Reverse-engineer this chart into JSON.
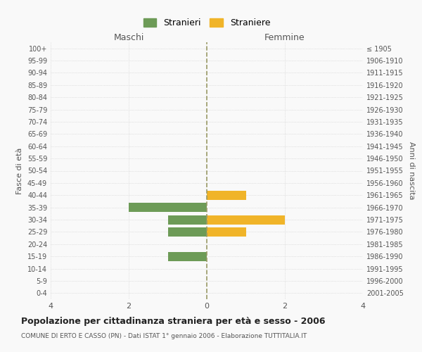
{
  "age_groups": [
    "100+",
    "95-99",
    "90-94",
    "85-89",
    "80-84",
    "75-79",
    "70-74",
    "65-69",
    "60-64",
    "55-59",
    "50-54",
    "45-49",
    "40-44",
    "35-39",
    "30-34",
    "25-29",
    "20-24",
    "15-19",
    "10-14",
    "5-9",
    "0-4"
  ],
  "birth_years": [
    "≤ 1905",
    "1906-1910",
    "1911-1915",
    "1916-1920",
    "1921-1925",
    "1926-1930",
    "1931-1935",
    "1936-1940",
    "1941-1945",
    "1946-1950",
    "1951-1955",
    "1956-1960",
    "1961-1965",
    "1966-1970",
    "1971-1975",
    "1976-1980",
    "1981-1985",
    "1986-1990",
    "1991-1995",
    "1996-2000",
    "2001-2005"
  ],
  "maschi": [
    0,
    0,
    0,
    0,
    0,
    0,
    0,
    0,
    0,
    0,
    0,
    0,
    0,
    -2,
    -1,
    -1,
    0,
    -1,
    0,
    0,
    0
  ],
  "femmine": [
    0,
    0,
    0,
    0,
    0,
    0,
    0,
    0,
    0,
    0,
    0,
    0,
    1,
    0,
    2,
    1,
    0,
    0,
    0,
    0,
    0
  ],
  "male_color": "#6d9b57",
  "female_color": "#f0b429",
  "title_bold": "Popolazione per cittadinanza straniera per età e sesso - 2006",
  "subtitle": "COMUNE DI ERTO E CASSO (PN) - Dati ISTAT 1° gennaio 2006 - Elaborazione TUTTITALIA.IT",
  "xlabel_left": "Maschi",
  "xlabel_right": "Femmine",
  "ylabel_left": "Fasce di età",
  "ylabel_right": "Anni di nascita",
  "legend_male": "Stranieri",
  "legend_female": "Straniere",
  "xlim": [
    -4,
    4
  ],
  "xticks": [
    -4,
    -2,
    0,
    2,
    4
  ],
  "xticklabels": [
    "4",
    "2",
    "0",
    "2",
    "4"
  ],
  "background_color": "#f9f9f9",
  "grid_color": "#cccccc",
  "bar_height": 0.75,
  "center_line_color": "#999966",
  "center_line_style": "--"
}
